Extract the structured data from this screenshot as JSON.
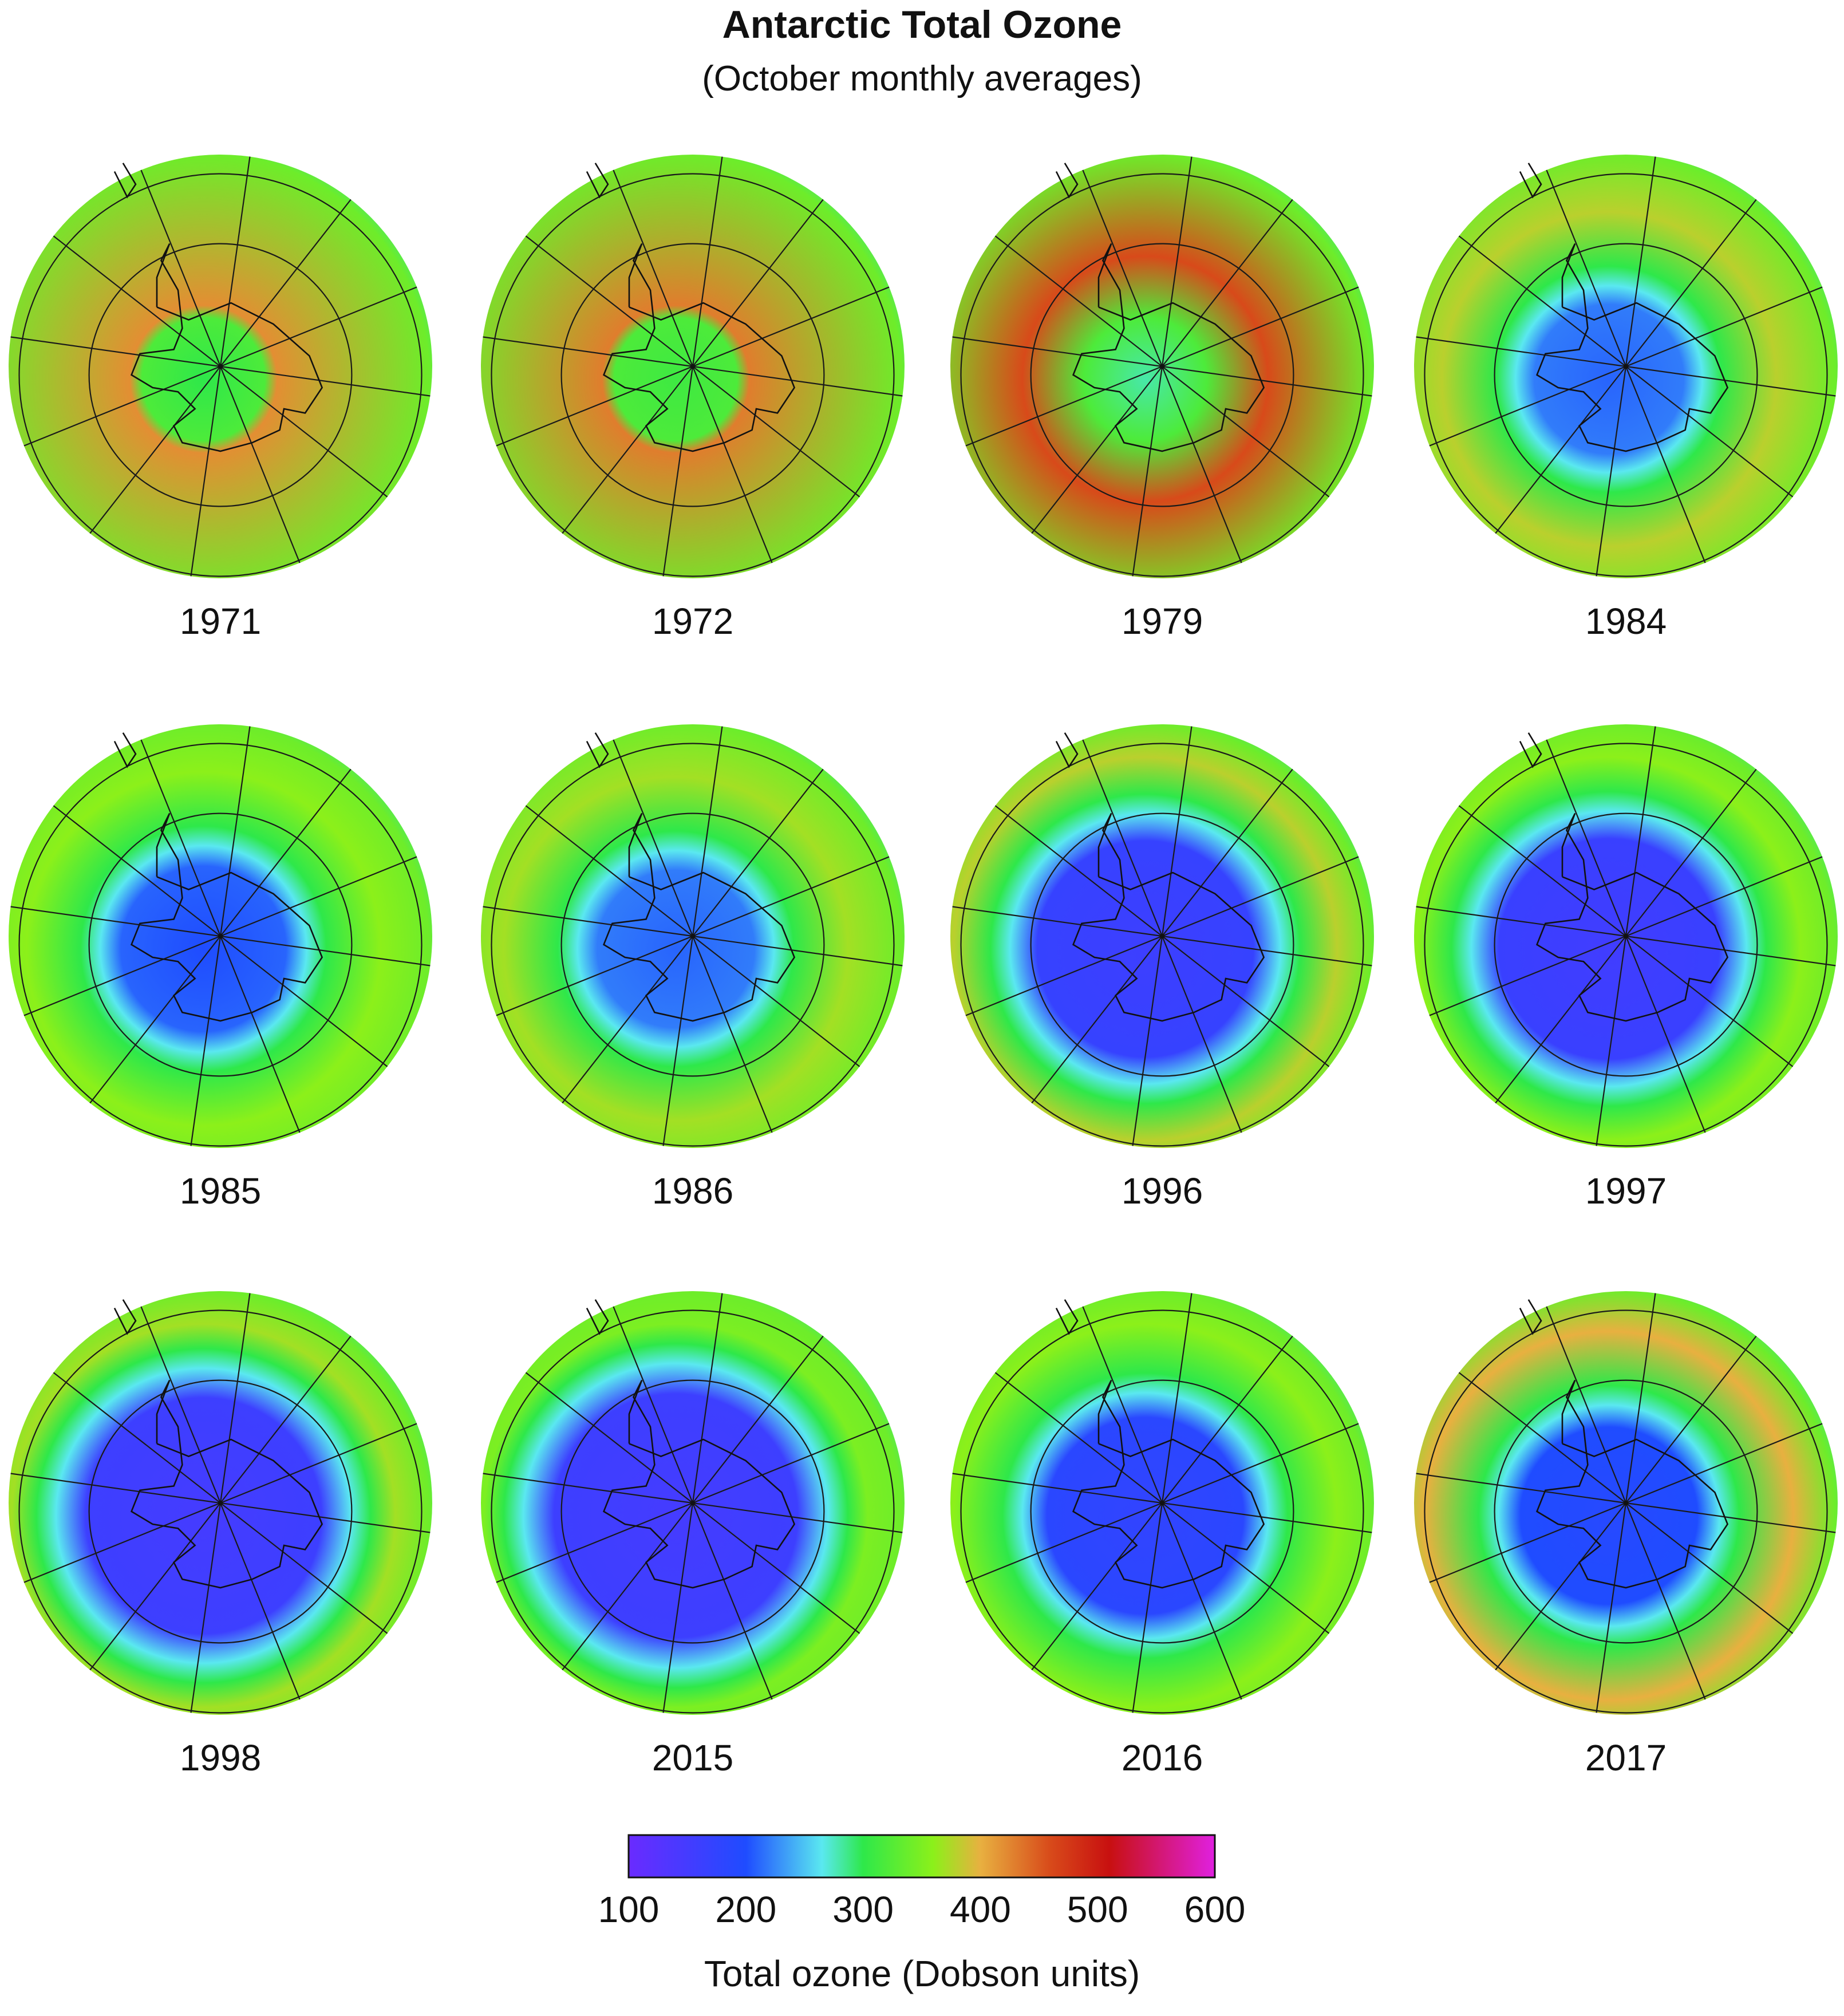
{
  "title": "Antarctic Total Ozone",
  "subtitle": "(October monthly averages)",
  "chart_data": {
    "type": "heatmap",
    "title": "Antarctic Total Ozone",
    "subtitle": "(October monthly averages)",
    "panels": [
      {
        "year": "1971",
        "hole_ozone": 300,
        "hole_extent": 0.0,
        "ring_ozone": 420
      },
      {
        "year": "1972",
        "hole_ozone": 310,
        "hole_extent": 0.0,
        "ring_ozone": 430
      },
      {
        "year": "1979",
        "hole_ozone": 280,
        "hole_extent": 0.2,
        "ring_ozone": 460
      },
      {
        "year": "1984",
        "hole_ozone": 210,
        "hole_extent": 0.38,
        "ring_ozone": 380
      },
      {
        "year": "1985",
        "hole_ozone": 200,
        "hole_extent": 0.42,
        "ring_ozone": 360
      },
      {
        "year": "1986",
        "hole_ozone": 210,
        "hole_extent": 0.4,
        "ring_ozone": 370
      },
      {
        "year": "1996",
        "hole_ozone": 160,
        "hole_extent": 0.55,
        "ring_ozone": 380
      },
      {
        "year": "1997",
        "hole_ozone": 155,
        "hole_extent": 0.56,
        "ring_ozone": 360
      },
      {
        "year": "1998",
        "hole_ozone": 150,
        "hole_extent": 0.6,
        "ring_ozone": 370
      },
      {
        "year": "2015",
        "hole_ozone": 150,
        "hole_extent": 0.62,
        "ring_ozone": 350
      },
      {
        "year": "2016",
        "hole_ozone": 175,
        "hole_extent": 0.5,
        "ring_ozone": 360
      },
      {
        "year": "2017",
        "hole_ozone": 190,
        "hole_extent": 0.45,
        "ring_ozone": 400
      }
    ],
    "colorbar": {
      "label": "Total ozone (Dobson units)",
      "range": [
        100,
        600
      ],
      "ticks": [
        "100",
        "200",
        "300",
        "400",
        "500",
        "600"
      ],
      "stops": [
        {
          "value": 100,
          "color": "#6a2bff"
        },
        {
          "value": 200,
          "color": "#1f4cff"
        },
        {
          "value": 265,
          "color": "#5ae8f0"
        },
        {
          "value": 300,
          "color": "#2ee84a"
        },
        {
          "value": 360,
          "color": "#8cf01a"
        },
        {
          "value": 400,
          "color": "#e8b040"
        },
        {
          "value": 460,
          "color": "#d84a1a"
        },
        {
          "value": 510,
          "color": "#c81010"
        },
        {
          "value": 600,
          "color": "#e020e0"
        }
      ]
    }
  }
}
